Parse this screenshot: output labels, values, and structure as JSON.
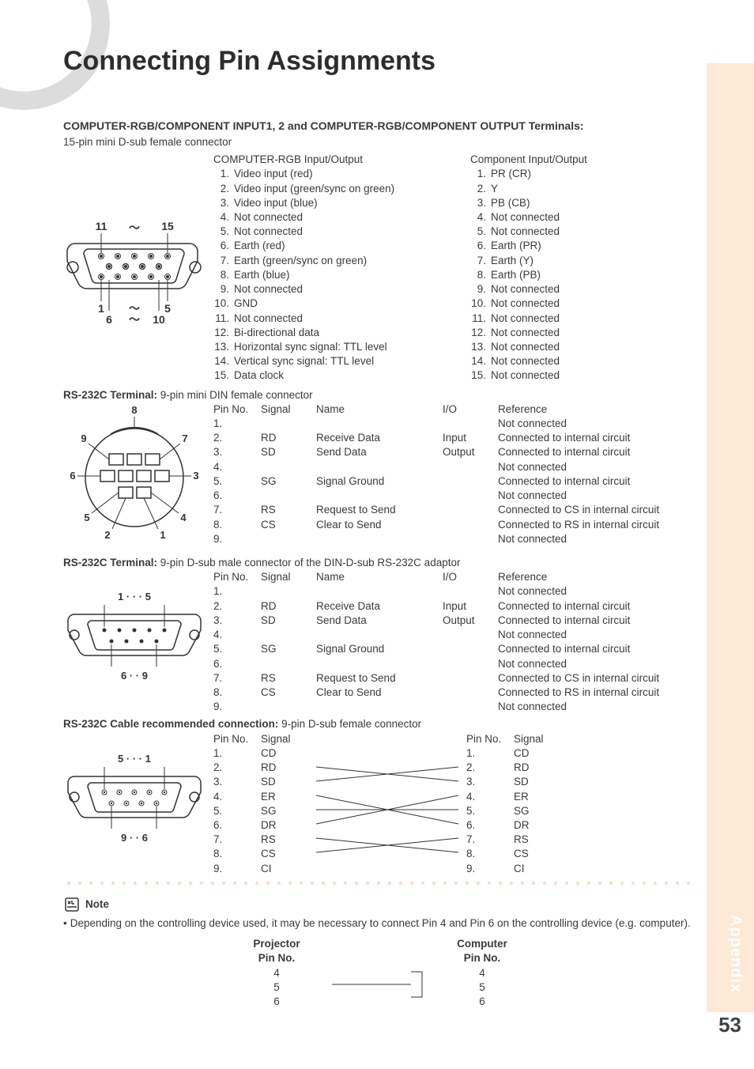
{
  "page": {
    "title": "Connecting Pin Assignments",
    "appendix_label": "Appendix",
    "page_number": "53"
  },
  "vga": {
    "heading": "COMPUTER-RGB/COMPONENT INPUT1, 2 and COMPUTER-RGB/COMPONENT OUTPUT Terminals:",
    "subheading": "15-pin mini D-sub female connector",
    "diagram_labels": {
      "tl": "11",
      "tr": "15",
      "bl": "1",
      "bm": "6",
      "br1": "5",
      "br2": "10"
    },
    "rgb_title": "COMPUTER-RGB Input/Output",
    "rgb_pins": [
      "Video input (red)",
      "Video input (green/sync on green)",
      "Video input (blue)",
      "Not connected",
      "Not connected",
      "Earth (red)",
      "Earth (green/sync on green)",
      "Earth (blue)",
      "Not connected",
      "GND",
      "Not connected",
      "Bi-directional data",
      "Horizontal sync signal: TTL level",
      "Vertical sync signal: TTL level",
      "Data clock"
    ],
    "comp_title": "Component Input/Output",
    "comp_pins": [
      "PR (CR)",
      "Y",
      "PB (CB)",
      "Not connected",
      "Not connected",
      "Earth (PR)",
      "Earth (Y)",
      "Earth (PB)",
      "Not connected",
      "Not connected",
      "Not connected",
      "Not connected",
      "Not connected",
      "Not connected",
      "Not connected"
    ]
  },
  "din": {
    "heading_prefix": "RS-232C Terminal:",
    "heading_rest": " 9-pin mini DIN female connector",
    "diagram_labels": [
      "8",
      "9",
      "7",
      "6",
      "3",
      "5",
      "4",
      "2",
      "1"
    ],
    "cols": [
      "Pin No.",
      "Signal",
      "Name",
      "I/O",
      "Reference"
    ],
    "rows": [
      {
        "n": "1.",
        "sig": "",
        "name": "",
        "io": "",
        "ref": "Not connected"
      },
      {
        "n": "2.",
        "sig": "RD",
        "name": "Receive Data",
        "io": "Input",
        "ref": "Connected to internal circuit"
      },
      {
        "n": "3.",
        "sig": "SD",
        "name": "Send Data",
        "io": "Output",
        "ref": "Connected to internal circuit"
      },
      {
        "n": "4.",
        "sig": "",
        "name": "",
        "io": "",
        "ref": "Not connected"
      },
      {
        "n": "5.",
        "sig": "SG",
        "name": "Signal Ground",
        "io": "",
        "ref": "Connected to internal circuit"
      },
      {
        "n": "6.",
        "sig": "",
        "name": "",
        "io": "",
        "ref": "Not connected"
      },
      {
        "n": "7.",
        "sig": "RS",
        "name": "Request to Send",
        "io": "",
        "ref": "Connected to CS in internal circuit"
      },
      {
        "n": "8.",
        "sig": "CS",
        "name": "Clear to Send",
        "io": "",
        "ref": "Connected to RS in internal circuit"
      },
      {
        "n": "9.",
        "sig": "",
        "name": "",
        "io": "",
        "ref": "Not connected"
      }
    ]
  },
  "dsub": {
    "heading_prefix": "RS-232C Terminal:",
    "heading_rest": " 9-pin D-sub male connector of the DIN-D-sub RS-232C adaptor",
    "diagram_labels": {
      "top": "1   · · ·   5",
      "bottom": "6  · ·  9"
    },
    "cols": [
      "Pin No.",
      "Signal",
      "Name",
      "I/O",
      "Reference"
    ],
    "rows": [
      {
        "n": "1.",
        "sig": "",
        "name": "",
        "io": "",
        "ref": "Not connected"
      },
      {
        "n": "2.",
        "sig": "RD",
        "name": "Receive Data",
        "io": "Input",
        "ref": "Connected to internal circuit"
      },
      {
        "n": "3.",
        "sig": "SD",
        "name": "Send Data",
        "io": "Output",
        "ref": "Connected to internal circuit"
      },
      {
        "n": "4.",
        "sig": "",
        "name": "",
        "io": "",
        "ref": "Not connected"
      },
      {
        "n": "5.",
        "sig": "SG",
        "name": "Signal Ground",
        "io": "",
        "ref": "Connected to internal circuit"
      },
      {
        "n": "6.",
        "sig": "",
        "name": "",
        "io": "",
        "ref": "Not connected"
      },
      {
        "n": "7.",
        "sig": "RS",
        "name": "Request to Send",
        "io": "",
        "ref": "Connected to CS in internal circuit"
      },
      {
        "n": "8.",
        "sig": "CS",
        "name": "Clear to Send",
        "io": "",
        "ref": "Connected to RS in internal circuit"
      },
      {
        "n": "9.",
        "sig": "",
        "name": "",
        "io": "",
        "ref": "Not connected"
      }
    ]
  },
  "cable": {
    "heading_prefix": "RS-232C Cable recommended connection:",
    "heading_rest": " 9-pin D-sub female connector",
    "diagram_labels": {
      "top": "5   · · ·   1",
      "bottom": "9  · ·  6"
    },
    "left_cols": [
      "Pin No.",
      "Signal"
    ],
    "right_cols": [
      "Pin No.",
      "Signal"
    ],
    "rows": [
      {
        "ln": "1.",
        "ls": "CD",
        "rn": "1.",
        "rs": "CD"
      },
      {
        "ln": "2.",
        "ls": "RD",
        "rn": "2.",
        "rs": "RD"
      },
      {
        "ln": "3.",
        "ls": "SD",
        "rn": "3.",
        "rs": "SD"
      },
      {
        "ln": "4.",
        "ls": "ER",
        "rn": "4.",
        "rs": "ER"
      },
      {
        "ln": "5.",
        "ls": "SG",
        "rn": "5.",
        "rs": "SG"
      },
      {
        "ln": "6.",
        "ls": "DR",
        "rn": "6.",
        "rs": "DR"
      },
      {
        "ln": "7.",
        "ls": "RS",
        "rn": "7.",
        "rs": "RS"
      },
      {
        "ln": "8.",
        "ls": "CS",
        "rn": "8.",
        "rs": "CS"
      },
      {
        "ln": "9.",
        "ls": "CI",
        "rn": "9.",
        "rs": "CI"
      }
    ],
    "cross_pairs": [
      [
        2,
        3
      ],
      [
        3,
        2
      ],
      [
        4,
        6
      ],
      [
        5,
        5
      ],
      [
        6,
        4
      ],
      [
        7,
        8
      ],
      [
        8,
        7
      ]
    ]
  },
  "note": {
    "label": "Note",
    "text": "Depending on the controlling device used, it may be necessary to connect Pin 4 and Pin 6 on the controlling device (e.g. computer).",
    "proj_h1": "Projector",
    "proj_h2": "Pin No.",
    "comp_h1": "Computer",
    "comp_h2": "Pin No.",
    "pins": [
      "4",
      "5",
      "6"
    ]
  },
  "style": {
    "text_color": "#3a3a3a",
    "accent_bg": "#fde9d6",
    "dot_color": "#f5dcc9",
    "line_color": "#333333"
  }
}
